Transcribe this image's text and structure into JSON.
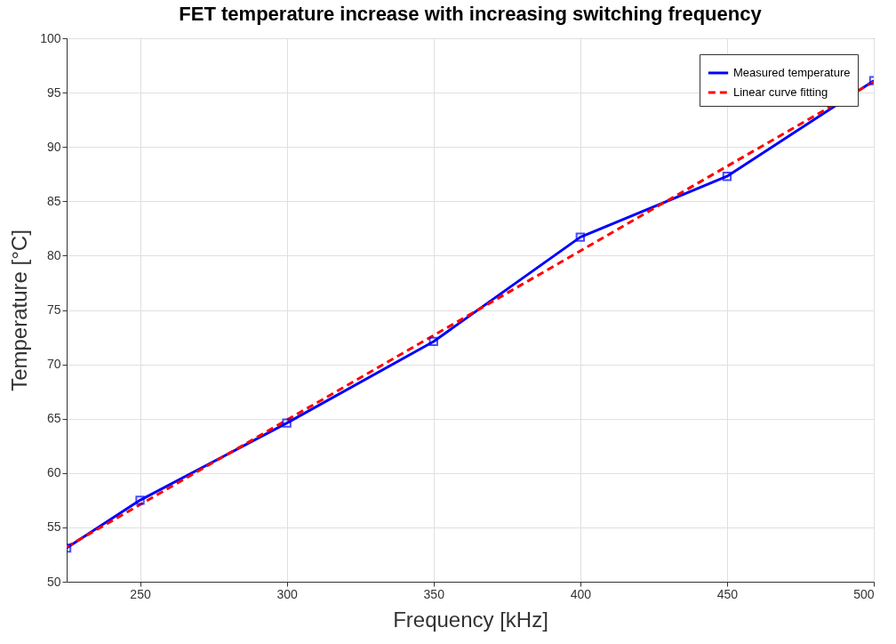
{
  "chart_data": {
    "type": "line",
    "title": "FET temperature increase with increasing switching frequency",
    "xlabel": "Frequency [kHz]",
    "ylabel": "Temperature [°C]",
    "xlim": [
      225,
      500
    ],
    "xticks": [
      250,
      300,
      350,
      400,
      450,
      500
    ],
    "ylim": [
      50,
      100
    ],
    "yticks": [
      50,
      55,
      60,
      65,
      70,
      75,
      80,
      85,
      90,
      95,
      100
    ],
    "grid": true,
    "legend": "top right",
    "series": [
      {
        "name": "Measured temperature",
        "color": "#0000ff",
        "x": [
          225,
          250,
          300,
          350,
          400,
          450,
          500
        ],
        "values": [
          53.1,
          57.5,
          64.6,
          72.1,
          81.7,
          87.3,
          96.1
        ],
        "marker": "square",
        "line_style": "solid"
      },
      {
        "name": "Linear curve fitting",
        "color": "#ff0000",
        "type": "line",
        "x": [
          225,
          500
        ],
        "values": [
          53.2,
          96.0
        ],
        "marker": "none",
        "line_style": "dashed"
      }
    ]
  }
}
